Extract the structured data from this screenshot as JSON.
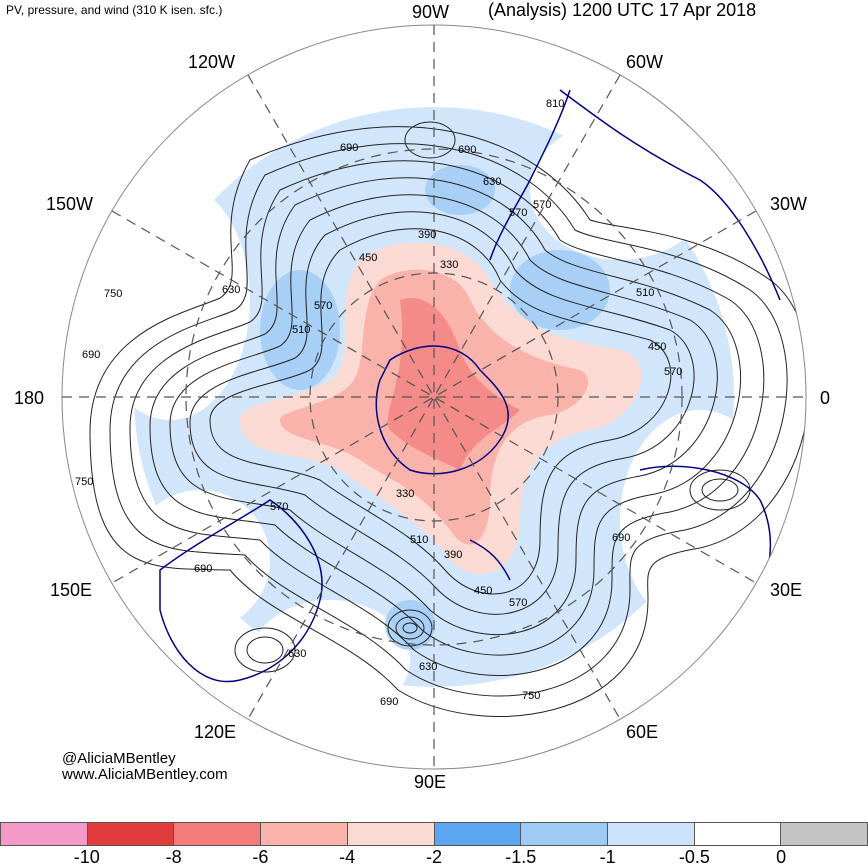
{
  "subtitle": "PV, pressure, and wind (310 K isen. sfc.)",
  "title": "(Analysis) 1200 UTC 17 Apr 2018",
  "longitude_labels": {
    "w90": "90W",
    "w120": "120W",
    "w60": "60W",
    "w150": "150W",
    "w30": "30W",
    "d180": "180",
    "d0": "0",
    "e150": "150E",
    "e30": "30E",
    "e120": "120E",
    "e60": "60E",
    "e90": "90E"
  },
  "contour_labels": [
    "690",
    "630",
    "750",
    "570",
    "510",
    "450",
    "390",
    "330",
    "810",
    "570",
    "690",
    "510",
    "450",
    "570",
    "630",
    "570",
    "690",
    "750",
    "690",
    "390",
    "510",
    "450",
    "570",
    "630",
    "690",
    "750",
    "630",
    "690",
    "570",
    "330"
  ],
  "credits": {
    "handle": "@AliciaMBentley",
    "site": "www.AliciaMBentley.com"
  },
  "colorbar": {
    "colors": [
      "#f49ac8",
      "#e03c3c",
      "#f47b7b",
      "#f9b3ab",
      "#fbdad4",
      "#5aa6f0",
      "#9ecbf6",
      "#cde3fb",
      "#ffffff",
      "#c4c4c4"
    ],
    "tick_labels": [
      "-10",
      "-8",
      "-6",
      "-4",
      "-2",
      "-1.5",
      "-1",
      "-0.5",
      "0"
    ]
  },
  "colors": {
    "map_outline": "#888888",
    "coastline": "#000080",
    "grid": "#555555",
    "contour": "#222222"
  }
}
